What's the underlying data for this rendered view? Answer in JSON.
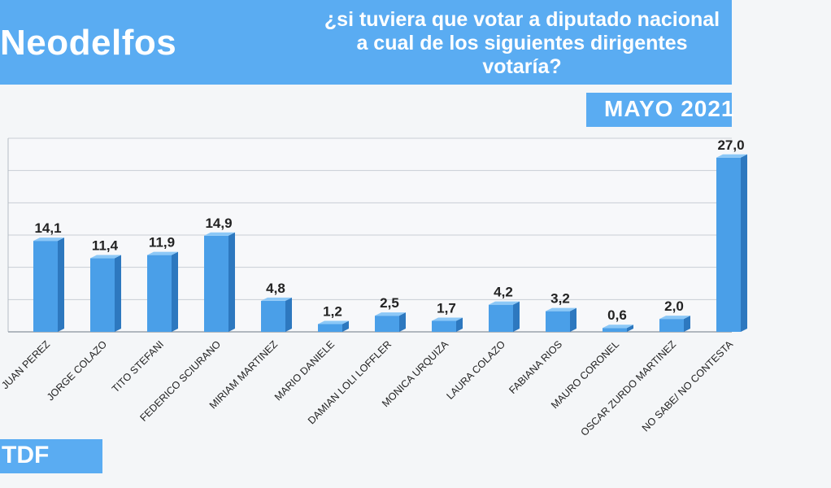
{
  "header": {
    "brand": "Neodelfos",
    "question_line1": "¿si tuviera que votar a diputado nacional",
    "question_line2": "a cual de los siguientes dirigentes",
    "question_line3": "votaría?"
  },
  "date_label": "MAYO 2021",
  "footer_label": "TDF",
  "colors": {
    "header": "#5aacf2",
    "bar": "#4a9fe8",
    "bar_top": "#8cc8f7",
    "bar_side": "#2d78bf"
  },
  "chart_data": {
    "type": "bar",
    "categories": [
      "JUAN PEREZ",
      "JORGE COLAZO",
      "TITO STEFANI",
      "FEDERICO SCIURANO",
      "MIRIAM MARTINEZ",
      "MARIO DANIELE",
      "DAMIAN LOLI LOFFLER",
      "MONICA URQUIZA",
      "LAURA COLAZO",
      "FABIANA RIOS",
      "MAURO CORONEL",
      "OSCAR ZURDO MARTINEZ",
      "NO SABE/ NO CONTESTA"
    ],
    "values": [
      14.1,
      11.4,
      11.9,
      14.9,
      4.8,
      1.2,
      2.5,
      1.7,
      4.2,
      3.2,
      0.6,
      2.0,
      27.0
    ],
    "value_labels": [
      "14,1",
      "11,4",
      "11,9",
      "14,9",
      "4,8",
      "1,2",
      "2,5",
      "1,7",
      "4,2",
      "3,2",
      "0,6",
      "2,0",
      "27,0"
    ],
    "ylim": [
      0,
      30
    ],
    "grid": true,
    "legend": "none"
  }
}
